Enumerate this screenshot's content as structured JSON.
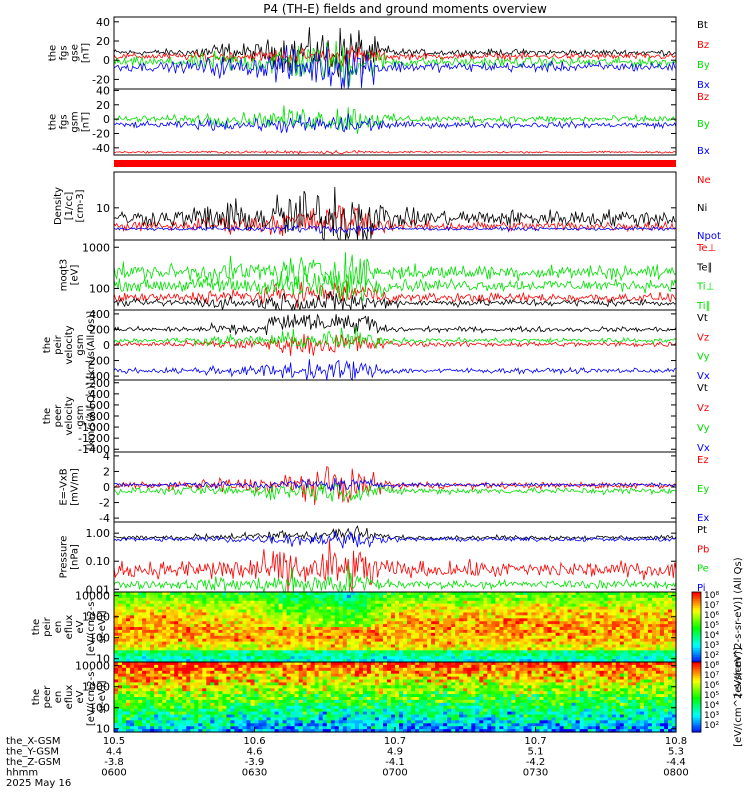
{
  "title": "P4 (TH-E) fields and ground moments overview",
  "colors": {
    "black": "#000000",
    "red": "#ff0000",
    "green": "#00e000",
    "blue": "#0000ff"
  },
  "chart_data": [
    {
      "id": "fgs_gse",
      "type": "line",
      "ylabel": [
        "the",
        "fgs",
        "gse",
        "[nT]"
      ],
      "ylim": [
        -30,
        45
      ],
      "yticks": [
        "40",
        "20",
        "0",
        "-20"
      ],
      "series": [
        {
          "name": "Bt",
          "color": "#000000"
        },
        {
          "name": "Bz",
          "color": "#ff0000"
        },
        {
          "name": "By",
          "color": "#00e000"
        },
        {
          "name": "Bx",
          "color": "#0000ff"
        }
      ]
    },
    {
      "id": "fgs_gsm",
      "type": "line",
      "ylabel": [
        "the",
        "fgs",
        "gsm",
        "[nT]"
      ],
      "ylim": [
        -50,
        42
      ],
      "yticks": [
        "40",
        "20",
        "0",
        "-20",
        "-40"
      ],
      "series": [
        {
          "name": "Bz",
          "color": "#ff0000"
        },
        {
          "name": "By",
          "color": "#00e000"
        },
        {
          "name": "Bx",
          "color": "#0000ff"
        }
      ]
    },
    {
      "id": "density",
      "type": "line",
      "ylabel": [
        "Density",
        "[1/cc]",
        "[cm-3]"
      ],
      "scale": "log",
      "ylim": [
        2,
        60
      ],
      "yticks": [
        "10"
      ],
      "series": [
        {
          "name": "Ne",
          "color": "#ff0000"
        },
        {
          "name": "Ni",
          "color": "#000000"
        },
        {
          "name": "Npot",
          "color": "#0000ff"
        }
      ]
    },
    {
      "id": "temperature",
      "type": "line",
      "ylabel": [
        "moqt3",
        "[eV]"
      ],
      "scale": "log",
      "ylim": [
        30,
        1500
      ],
      "yticks": [
        "1000",
        "100"
      ],
      "series": [
        {
          "name": "Te⊥",
          "color": "#ff0000"
        },
        {
          "name": "Te∥",
          "color": "#000000"
        },
        {
          "name": "Ti⊥",
          "color": "#00e000"
        },
        {
          "name": "Ti∥",
          "color": "#00e000"
        }
      ]
    },
    {
      "id": "peir_velocity",
      "type": "line",
      "ylabel": [
        "the",
        "peir",
        "velocity",
        "gsm",
        "[km/s(All Qs)]"
      ],
      "ylim": [
        -450,
        450
      ],
      "yticks": [
        "400",
        "200",
        "0",
        "-200",
        "-400"
      ],
      "series": [
        {
          "name": "Vt",
          "color": "#000000"
        },
        {
          "name": "Vz",
          "color": "#ff0000"
        },
        {
          "name": "Vy",
          "color": "#00e000"
        },
        {
          "name": "Vx",
          "color": "#0000ff"
        }
      ]
    },
    {
      "id": "peer_velocity",
      "type": "line",
      "ylabel": [
        "the",
        "peer",
        "velocity",
        "gsm",
        "[km/s(All Qs)]"
      ],
      "ylim": [
        -1450,
        -150
      ],
      "yticks": [
        "-200",
        "-400",
        "-600",
        "-800",
        "-1000",
        "-1200",
        "-1400"
      ],
      "series": [
        {
          "name": "Vt",
          "color": "#000000"
        },
        {
          "name": "Vz",
          "color": "#ff0000"
        },
        {
          "name": "Vy",
          "color": "#00e000"
        },
        {
          "name": "Vx",
          "color": "#0000ff"
        }
      ]
    },
    {
      "id": "efield",
      "type": "line",
      "ylabel": [
        "E=-VxB",
        "[mV/m]"
      ],
      "ylim": [
        -4.5,
        4.5
      ],
      "yticks": [
        "4",
        "2",
        "0",
        "-2",
        "-4"
      ],
      "series": [
        {
          "name": "Ez",
          "color": "#ff0000"
        },
        {
          "name": "Ey",
          "color": "#00e000"
        },
        {
          "name": "Ex",
          "color": "#0000ff"
        }
      ]
    },
    {
      "id": "pressure",
      "type": "line",
      "ylabel": [
        "Pressure",
        "[nPa]"
      ],
      "scale": "log",
      "ylim": [
        0.008,
        2.5
      ],
      "yticks": [
        "1.00",
        "0.10",
        "0.01"
      ],
      "series": [
        {
          "name": "Pt",
          "color": "#000000"
        },
        {
          "name": "Pb",
          "color": "#ff0000"
        },
        {
          "name": "Pe",
          "color": "#00e000"
        },
        {
          "name": "Pi",
          "color": "#0000ff"
        }
      ]
    },
    {
      "id": "peir_spec",
      "type": "heatmap",
      "ylabel": [
        "the",
        "peir",
        "en",
        "eflux",
        "eV",
        "[eV/(cm2-s-",
        "sr-eV)]"
      ],
      "scale": "log",
      "ylim": [
        7,
        15000
      ],
      "yticks": [
        "10000",
        "1000",
        "100",
        "10"
      ],
      "colorbar": {
        "label": "[eV/(cm^2-s-sr-eV)] (All Qs)",
        "ticks": [
          "10⁸",
          "10⁷",
          "10⁶",
          "10⁵",
          "10⁴",
          "10³",
          "10²"
        ]
      }
    },
    {
      "id": "peer_spec",
      "type": "heatmap",
      "ylabel": [
        "the",
        "peer",
        "en",
        "eflux",
        "eV",
        "[eV/(cm2-s-",
        "sr-eV)]"
      ],
      "scale": "log",
      "ylim": [
        7,
        15000
      ],
      "yticks": [
        "10000",
        "1000",
        "100",
        "10"
      ],
      "colorbar": {
        "label": "[eV/(cm^2-s-sr-eV)]",
        "ticks": [
          "10⁸",
          "10⁷",
          "10⁶",
          "10⁵",
          "10⁴",
          "10³",
          "10²"
        ]
      }
    }
  ],
  "x_axis": {
    "row_labels": [
      "the_X-GSM",
      "the_Y-GSM",
      "the_Z-GSM",
      "hhmm",
      "2025 May 16"
    ],
    "ticks": [
      {
        "X": "10.5",
        "Y": "4.4",
        "Z": "-3.8",
        "hhmm": "0600"
      },
      {
        "X": "10.6",
        "Y": "4.6",
        "Z": "-3.9",
        "hhmm": "0630"
      },
      {
        "X": "10.7",
        "Y": "4.9",
        "Z": "-4.1",
        "hhmm": "0700"
      },
      {
        "X": "10.7",
        "Y": "5.1",
        "Z": "-4.2",
        "hhmm": "0730"
      },
      {
        "X": "10.8",
        "Y": "5.3",
        "Z": "-4.4",
        "hhmm": "0800"
      }
    ]
  }
}
